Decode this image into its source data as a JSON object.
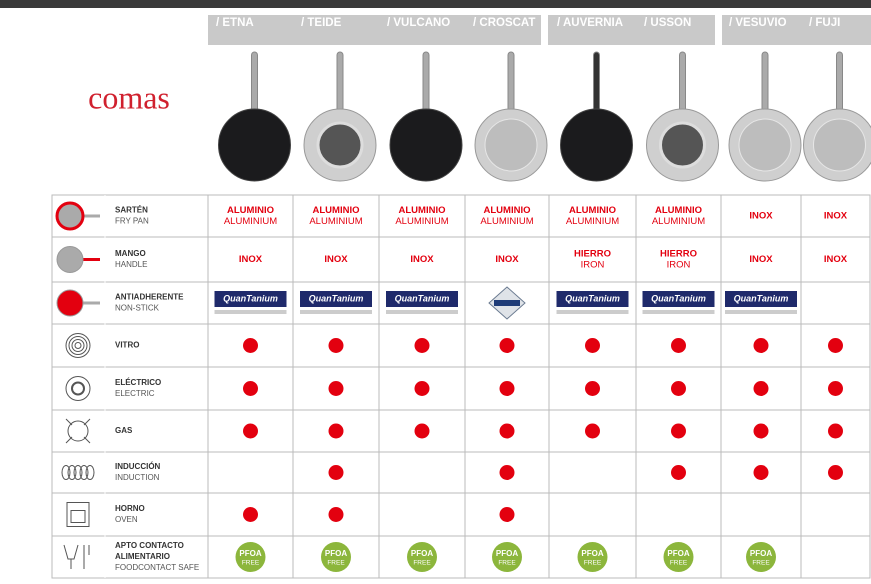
{
  "brand": "comas",
  "products": [
    "/ ETNA",
    "/ TEIDE",
    "/ VULCANO",
    "/ CROSCAT",
    "/ AUVERNIA",
    "/ USSON",
    "/ VESUVIO",
    "/ FUJI"
  ],
  "nonstick_logo": "QuanTanium",
  "pfoa_badge": [
    "PFOA",
    "FREE"
  ],
  "rows": [
    {
      "label": [
        "SARTÉN"
      ],
      "sublabel": "FRY PAN",
      "cells": [
        [
          "ALUMINIO",
          "ALUMINIUM"
        ],
        [
          "ALUMINIO",
          "ALUMINIUM"
        ],
        [
          "ALUMINIO",
          "ALUMINIUM"
        ],
        [
          "ALUMINIO",
          "ALUMINIUM"
        ],
        [
          "ALUMINIO",
          "ALUMINIUM"
        ],
        [
          "ALUMINIO",
          "ALUMINIUM"
        ],
        [
          "INOX"
        ],
        [
          "INOX"
        ]
      ]
    },
    {
      "label": [
        "MANGO"
      ],
      "sublabel": "HANDLE",
      "cells": [
        [
          "INOX"
        ],
        [
          "INOX"
        ],
        [
          "INOX"
        ],
        [
          "INOX"
        ],
        [
          "HIERRO",
          "IRON"
        ],
        [
          "HIERRO",
          "IRON"
        ],
        [
          "INOX"
        ],
        [
          "INOX"
        ]
      ]
    },
    {
      "label": [
        "ANTIADHERENTE"
      ],
      "sublabel": "NON-STICK",
      "cells": [
        "logo",
        "logo",
        "logo",
        null,
        "logo",
        "logo",
        "logo",
        null
      ]
    },
    {
      "label": [
        "VITRO"
      ],
      "sublabel": null,
      "cells": [
        true,
        true,
        true,
        true,
        true,
        true,
        true,
        true
      ]
    },
    {
      "label": [
        "ELÉCTRICO"
      ],
      "sublabel": "ELECTRIC",
      "cells": [
        true,
        true,
        true,
        true,
        true,
        true,
        true,
        true
      ]
    },
    {
      "label": [
        "GAS"
      ],
      "sublabel": null,
      "cells": [
        true,
        true,
        true,
        true,
        true,
        true,
        true,
        true
      ]
    },
    {
      "label": [
        "INDUCCIÓN"
      ],
      "sublabel": "INDUCTION",
      "cells": [
        false,
        true,
        false,
        true,
        false,
        true,
        true,
        true
      ]
    },
    {
      "label": [
        "HORNO"
      ],
      "sublabel": "OVEN",
      "cells": [
        true,
        true,
        false,
        true,
        false,
        false,
        false,
        false
      ]
    },
    {
      "label": [
        "APTO CONTACTO",
        "ALIMENTARIO"
      ],
      "sublabel": "FOODCONTACT SAFE",
      "cells": [
        "pfoa",
        "pfoa",
        "pfoa",
        "pfoa",
        "pfoa",
        "pfoa",
        "pfoa",
        null
      ]
    }
  ]
}
